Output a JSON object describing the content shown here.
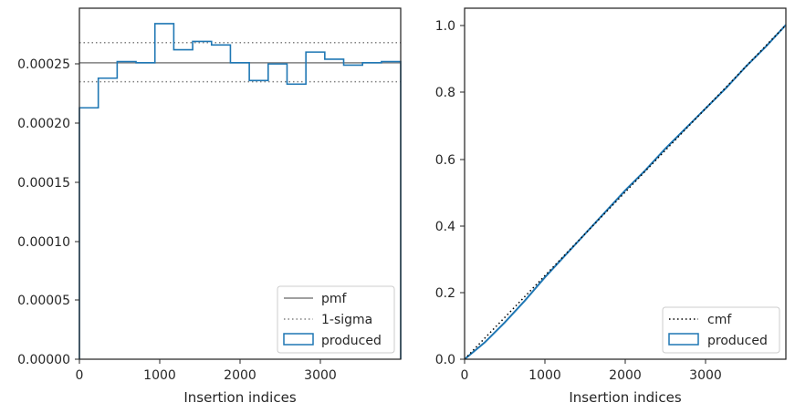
{
  "chart_data": [
    {
      "type": "histogram",
      "xlabel": "Insertion indices",
      "ylabel": "",
      "xlim": [
        0,
        4000
      ],
      "ylim": [
        0,
        0.000296
      ],
      "xticks": [
        0,
        1000,
        2000,
        3000
      ],
      "xtick_labels": [
        "0",
        "1000",
        "2000",
        "3000"
      ],
      "yticks": [
        0,
        5e-05,
        0.0001,
        0.00015,
        0.0002,
        0.00025
      ],
      "ytick_labels": [
        "0.00000",
        "0.00005",
        "0.00010",
        "0.00015",
        "0.00020",
        "0.00025"
      ],
      "bin_edges": [
        0,
        235,
        470,
        705,
        940,
        1175,
        1410,
        1645,
        1880,
        2115,
        2350,
        2585,
        2820,
        3055,
        3290,
        3525,
        3760,
        4000
      ],
      "series": [
        {
          "name": "produced",
          "values": [
            0.000212,
            0.000237,
            0.000251,
            0.00025,
            0.000283,
            0.000261,
            0.000268,
            0.000265,
            0.00025,
            0.000235,
            0.000249,
            0.000232,
            0.000259,
            0.000253,
            0.000248,
            0.00025,
            0.000251
          ],
          "color": "#1f77b4"
        }
      ],
      "reference_lines": [
        {
          "name": "pmf",
          "y": 0.00025,
          "style": "solid",
          "color": "#808080"
        },
        {
          "name": "1-sigma",
          "y": 0.000267,
          "style": "dotted",
          "color": "#808080"
        },
        {
          "name": "1-sigma",
          "y": 0.000234,
          "style": "dotted",
          "color": "#808080"
        }
      ],
      "legend": {
        "position": "lower right",
        "entries": [
          {
            "label": "pmf",
            "style": "solid",
            "color": "#808080"
          },
          {
            "label": "1-sigma",
            "style": "dotted",
            "color": "#808080"
          },
          {
            "label": "produced",
            "style": "box",
            "color": "#1f77b4"
          }
        ]
      },
      "grid": false
    },
    {
      "type": "line",
      "xlabel": "Insertion indices",
      "ylabel": "",
      "xlim": [
        0,
        4000
      ],
      "ylim": [
        0,
        1.05
      ],
      "xticks": [
        0,
        1000,
        2000,
        3000
      ],
      "xtick_labels": [
        "0",
        "1000",
        "2000",
        "3000"
      ],
      "yticks": [
        0,
        0.2,
        0.4,
        0.6,
        0.8,
        1.0
      ],
      "ytick_labels": [
        "0.0",
        "0.2",
        "0.4",
        "0.6",
        "0.8",
        "1.0"
      ],
      "series": [
        {
          "name": "cmf",
          "style": "dotted",
          "color": "#000000",
          "x": [
            0,
            4000
          ],
          "y": [
            0,
            1.0
          ]
        },
        {
          "name": "produced",
          "style": "step",
          "color": "#1f77b4",
          "x": [
            0,
            250,
            500,
            750,
            1000,
            1250,
            1500,
            1750,
            2000,
            2250,
            2500,
            2750,
            3000,
            3250,
            3500,
            3750,
            4000
          ],
          "y": [
            0,
            0.05,
            0.11,
            0.175,
            0.245,
            0.31,
            0.375,
            0.44,
            0.505,
            0.565,
            0.63,
            0.69,
            0.75,
            0.81,
            0.875,
            0.935,
            1.0
          ]
        }
      ],
      "legend": {
        "position": "lower right",
        "entries": [
          {
            "label": "cmf",
            "style": "dotted",
            "color": "#000000"
          },
          {
            "label": "produced",
            "style": "box",
            "color": "#1f77b4"
          }
        ]
      },
      "grid": false
    }
  ]
}
